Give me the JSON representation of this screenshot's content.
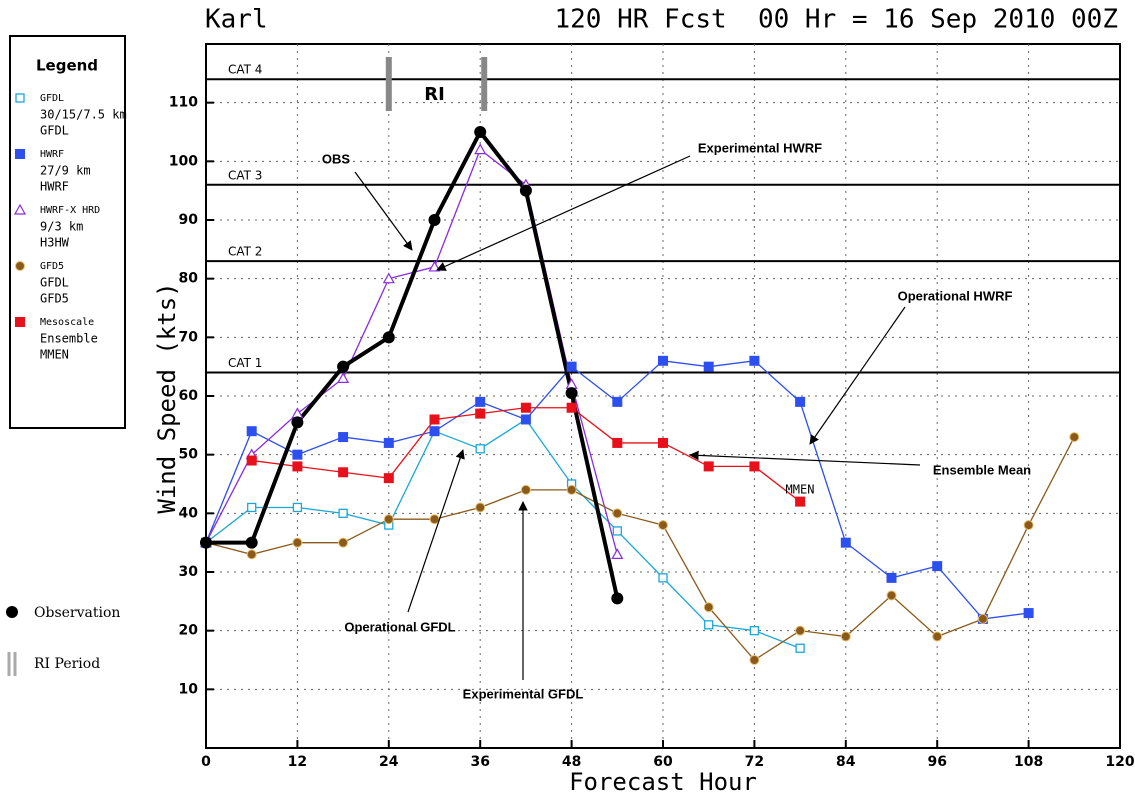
{
  "chart_data": {
    "type": "line",
    "title": "Karl",
    "subtitle": "120 HR Fcst  00 Hr = 16 Sep 2010 00Z",
    "x_label": "Forecast Hour",
    "y_label": "Wind Speed (kts)",
    "legend_title": "Legend",
    "xlim": [
      0,
      120
    ],
    "ylim": [
      0,
      120
    ],
    "xticks": [
      0,
      12,
      24,
      36,
      48,
      60,
      72,
      84,
      96,
      108,
      120
    ],
    "yticks": [
      10,
      20,
      30,
      40,
      50,
      60,
      70,
      80,
      90,
      100,
      110
    ],
    "grid": true,
    "x": [
      0,
      6,
      12,
      18,
      24,
      30,
      36,
      42,
      48,
      54,
      60,
      66,
      72,
      78,
      84,
      90,
      96,
      102,
      108,
      114
    ],
    "series": [
      {
        "name": "GFDL",
        "legend_detail": [
          "30/15/7.5 km",
          "GFDL"
        ],
        "color": "#1aa7d8",
        "marker": "open-square",
        "values": [
          35,
          41,
          41,
          40,
          38,
          54,
          51,
          56,
          45,
          37,
          29,
          21,
          20,
          17,
          null,
          null,
          null,
          null,
          null,
          null
        ]
      },
      {
        "name": "HWRF",
        "legend_detail": [
          "27/9 km",
          "HWRF"
        ],
        "color": "#2e4ff0",
        "marker": "square",
        "values": [
          35,
          54,
          50,
          53,
          52,
          54,
          59,
          56,
          65,
          59,
          66,
          65,
          66,
          59,
          35,
          29,
          31,
          22,
          23,
          null
        ]
      },
      {
        "name": "HWRF-X HRD",
        "legend_detail": [
          "9/3 km",
          "H3HW"
        ],
        "color": "#8a2be2",
        "marker": "triangle",
        "values": [
          35,
          50,
          57,
          63,
          80,
          82,
          102,
          96,
          62,
          33,
          null,
          null,
          null,
          null,
          null,
          null,
          null,
          null,
          null,
          null
        ]
      },
      {
        "name": "GFD5",
        "legend_detail": [
          "GFDL",
          "GFD5"
        ],
        "color": "#8b5a1a",
        "marker": "circle",
        "values": [
          35,
          33,
          35,
          35,
          39,
          39,
          41,
          44,
          44,
          40,
          38,
          24,
          15,
          20,
          19,
          26,
          19,
          22,
          38,
          53
        ]
      },
      {
        "name": "Mesoscale",
        "legend_detail": [
          "Ensemble",
          "MMEN"
        ],
        "color": "#e8101a",
        "marker": "square",
        "values": [
          null,
          49,
          48,
          47,
          46,
          56,
          57,
          58,
          58,
          52,
          52,
          48,
          48,
          42,
          null,
          null,
          null,
          null,
          null,
          null
        ]
      },
      {
        "name": "Observation",
        "color": "#000000",
        "marker": "dot",
        "thick": true,
        "values": [
          35,
          35,
          55.5,
          65,
          70,
          90,
          105,
          95,
          60.5,
          25.5,
          null,
          null,
          null,
          null,
          null,
          null,
          null,
          null,
          null,
          null
        ]
      }
    ],
    "reference_lines": [
      {
        "label": "CAT  4",
        "value": 114
      },
      {
        "label": "CAT  3",
        "value": 96
      },
      {
        "label": "CAT  2",
        "value": 83
      },
      {
        "label": "CAT  1",
        "value": 64
      }
    ],
    "ri_period": {
      "label": "RI",
      "legend": "RI Period",
      "x": [
        24,
        36
      ]
    },
    "annotations": [
      "OBS",
      "Experimental HWRF",
      "Operational HWRF",
      "Ensemble Mean",
      "MMEN",
      "Operational GFDL",
      "Experimental GFDL"
    ]
  }
}
